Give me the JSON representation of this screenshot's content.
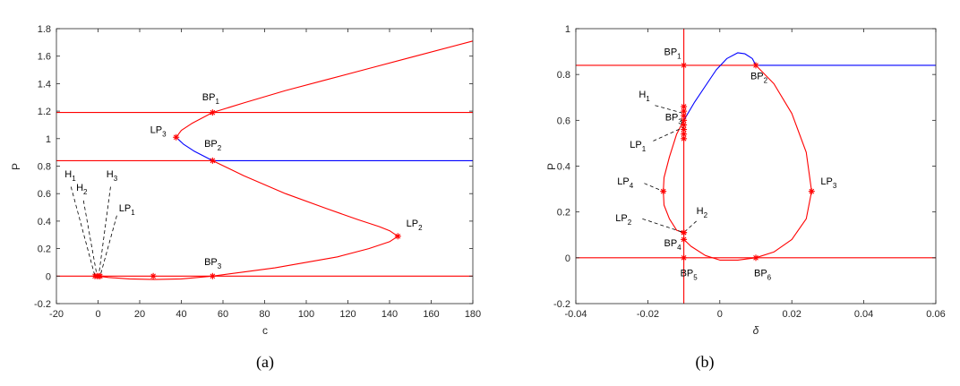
{
  "colors": {
    "red": "#ff0000",
    "blue": "#0000ff",
    "axis": "#262626",
    "annotation": "#000000"
  },
  "chart_data": [
    {
      "type": "line",
      "caption": "(a)",
      "xlabel": "c",
      "ylabel": "P",
      "xlim": [
        -20,
        180
      ],
      "ylim": [
        -0.2,
        1.8
      ],
      "xticks": [
        -20,
        0,
        20,
        40,
        60,
        80,
        100,
        120,
        140,
        160,
        180
      ],
      "yticks": [
        -0.2,
        0,
        0.2,
        0.4,
        0.6,
        0.8,
        1,
        1.2,
        1.4,
        1.6,
        1.8
      ],
      "grid": false,
      "series": [
        {
          "color": "red",
          "points": [
            [
              -20,
              1.19
            ],
            [
              180,
              1.19
            ]
          ]
        },
        {
          "color": "red",
          "points": [
            [
              -20,
              0.84
            ],
            [
              55,
              0.84
            ]
          ]
        },
        {
          "color": "blue",
          "points": [
            [
              55,
              0.84
            ],
            [
              180,
              0.84
            ]
          ]
        },
        {
          "color": "red",
          "points": [
            [
              -20,
              0
            ],
            [
              180,
              0
            ]
          ]
        },
        {
          "color": "red",
          "points": [
            [
              37.5,
              1.01
            ],
            [
              40,
              1.06
            ],
            [
              45,
              1.11
            ],
            [
              55,
              1.19
            ],
            [
              70,
              1.26
            ],
            [
              90,
              1.35
            ],
            [
              110,
              1.43
            ],
            [
              130,
              1.51
            ],
            [
              150,
              1.59
            ],
            [
              180,
              1.71
            ]
          ]
        },
        {
          "color": "blue",
          "points": [
            [
              37.5,
              1.01
            ],
            [
              41,
              0.96
            ],
            [
              46,
              0.91
            ],
            [
              55,
              0.84
            ]
          ]
        },
        {
          "color": "red",
          "points": [
            [
              55,
              0.84
            ],
            [
              70,
              0.73
            ],
            [
              90,
              0.6
            ],
            [
              110,
              0.49
            ],
            [
              125,
              0.41
            ],
            [
              135,
              0.36
            ],
            [
              140,
              0.33
            ],
            [
              144,
              0.29
            ],
            [
              140,
              0.25
            ],
            [
              130,
              0.2
            ],
            [
              115,
              0.14
            ],
            [
              100,
              0.1
            ],
            [
              85,
              0.06
            ],
            [
              70,
              0.03
            ],
            [
              55,
              0.0
            ],
            [
              40,
              -0.02
            ],
            [
              27,
              -0.025
            ],
            [
              15,
              -0.02
            ],
            [
              5,
              -0.01
            ],
            [
              0,
              0
            ]
          ]
        }
      ],
      "markers": [
        {
          "name": "BP1",
          "x": 55,
          "y": 1.19
        },
        {
          "name": "LP3",
          "x": 37.5,
          "y": 1.01
        },
        {
          "name": "BP2",
          "x": 55,
          "y": 0.84
        },
        {
          "name": "LP2",
          "x": 144,
          "y": 0.29
        },
        {
          "name": "BP3",
          "x": 55,
          "y": 0.0
        },
        {
          "name": "point",
          "x": 26.5,
          "y": 0.0
        },
        {
          "name": "H1",
          "x": -1.5,
          "y": 0.0
        },
        {
          "name": "H2",
          "x": -0.5,
          "y": 0.0
        },
        {
          "name": "H3",
          "x": 0.3,
          "y": 0.0
        },
        {
          "name": "LP1",
          "x": 1.0,
          "y": 0.0
        }
      ],
      "labels": [
        {
          "main": "BP",
          "sub": "1",
          "x": 50,
          "y": 1.28
        },
        {
          "main": "LP",
          "sub": "3",
          "x": 25,
          "y": 1.04
        },
        {
          "main": "BP",
          "sub": "2",
          "x": 51,
          "y": 0.94
        },
        {
          "main": "LP",
          "sub": "2",
          "x": 148,
          "y": 0.36
        },
        {
          "main": "BP",
          "sub": "3",
          "x": 51,
          "y": 0.08
        },
        {
          "main": "H",
          "sub": "1",
          "x": -16,
          "y": 0.72
        },
        {
          "main": "H",
          "sub": "2",
          "x": -10.5,
          "y": 0.62
        },
        {
          "main": "H",
          "sub": "3",
          "x": 4,
          "y": 0.72
        },
        {
          "main": "LP",
          "sub": "1",
          "x": 10,
          "y": 0.47
        }
      ],
      "leaders": [
        {
          "from": [
            -13,
            0.65
          ],
          "to": [
            -1.5,
            0.0
          ]
        },
        {
          "from": [
            -7,
            0.55
          ],
          "to": [
            -0.5,
            0.0
          ]
        },
        {
          "from": [
            6,
            0.65
          ],
          "to": [
            0.3,
            0.0
          ]
        },
        {
          "from": [
            9,
            0.44
          ],
          "to": [
            1.0,
            0.0
          ]
        }
      ]
    },
    {
      "type": "line",
      "caption": "(b)",
      "xlabel": "δ",
      "ylabel": "P",
      "xlim": [
        -0.04,
        0.06
      ],
      "ylim": [
        -0.2,
        1
      ],
      "xticks": [
        "-0.04",
        "-0.02",
        "0",
        "0.02",
        "0.04",
        "0.06"
      ],
      "xtick_values": [
        -0.04,
        -0.02,
        0,
        0.02,
        0.04,
        0.06
      ],
      "yticks": [
        -0.2,
        0,
        0.2,
        0.4,
        0.6,
        0.8,
        1
      ],
      "grid": false,
      "series": [
        {
          "color": "red",
          "points": [
            [
              -0.01,
              -0.2
            ],
            [
              -0.01,
              1
            ]
          ]
        },
        {
          "color": "red",
          "points": [
            [
              -0.04,
              0.84
            ],
            [
              0.01,
              0.84
            ]
          ]
        },
        {
          "color": "blue",
          "points": [
            [
              0.01,
              0.84
            ],
            [
              0.06,
              0.84
            ]
          ]
        },
        {
          "color": "red",
          "points": [
            [
              -0.04,
              0
            ],
            [
              0.06,
              0
            ]
          ]
        },
        {
          "color": "blue",
          "points": [
            [
              -0.01,
              0.6
            ],
            [
              -0.007,
              0.68
            ],
            [
              -0.004,
              0.75
            ],
            [
              -0.001,
              0.82
            ],
            [
              0.002,
              0.87
            ],
            [
              0.005,
              0.895
            ],
            [
              0.007,
              0.89
            ],
            [
              0.009,
              0.87
            ],
            [
              0.01,
              0.84
            ]
          ]
        },
        {
          "color": "red",
          "points": [
            [
              0.01,
              0.84
            ],
            [
              0.015,
              0.76
            ],
            [
              0.02,
              0.63
            ],
            [
              0.024,
              0.46
            ],
            [
              0.0255,
              0.29
            ],
            [
              0.024,
              0.17
            ],
            [
              0.02,
              0.08
            ],
            [
              0.015,
              0.025
            ],
            [
              0.01,
              0.0
            ],
            [
              0.005,
              -0.01
            ],
            [
              0.0,
              -0.01
            ],
            [
              -0.004,
              0.01
            ],
            [
              -0.008,
              0.05
            ],
            [
              -0.01,
              0.08
            ]
          ]
        },
        {
          "color": "red",
          "points": [
            [
              -0.01,
              0.6
            ],
            [
              -0.012,
              0.54
            ],
            [
              -0.014,
              0.44
            ],
            [
              -0.0155,
              0.35
            ],
            [
              -0.0157,
              0.29
            ],
            [
              -0.0155,
              0.23
            ],
            [
              -0.014,
              0.17
            ],
            [
              -0.012,
              0.12
            ],
            [
              -0.01,
              0.11
            ]
          ]
        }
      ],
      "markers": [
        {
          "name": "BP1",
          "x": -0.01,
          "y": 0.84
        },
        {
          "name": "BP2",
          "x": 0.01,
          "y": 0.84
        },
        {
          "name": "LP3",
          "x": 0.0255,
          "y": 0.29
        },
        {
          "name": "LP4",
          "x": -0.0157,
          "y": 0.29
        },
        {
          "name": "H2",
          "x": -0.01,
          "y": 0.11
        },
        {
          "name": "LP2",
          "x": -0.01,
          "y": 0.11
        },
        {
          "name": "BP4",
          "x": -0.01,
          "y": 0.08
        },
        {
          "name": "BP5",
          "x": -0.01,
          "y": 0.0
        },
        {
          "name": "BP6",
          "x": 0.01,
          "y": 0.0
        },
        {
          "name": "H1",
          "x": -0.01,
          "y": 0.64
        },
        {
          "name": "BP3",
          "x": -0.01,
          "y": 0.6
        },
        {
          "name": "LP1",
          "x": -0.01,
          "y": 0.58
        },
        {
          "name": "cluster",
          "x": -0.01,
          "y": 0.62
        },
        {
          "name": "cluster",
          "x": -0.01,
          "y": 0.56
        },
        {
          "name": "cluster",
          "x": -0.01,
          "y": 0.54
        },
        {
          "name": "cluster",
          "x": -0.01,
          "y": 0.66
        },
        {
          "name": "cluster",
          "x": -0.01,
          "y": 0.52
        }
      ],
      "labels": [
        {
          "main": "BP",
          "sub": "1",
          "x": -0.0155,
          "y": 0.885
        },
        {
          "main": "BP",
          "sub": "2",
          "x": 0.0085,
          "y": 0.78
        },
        {
          "main": "H",
          "sub": "1",
          "x": -0.0225,
          "y": 0.7
        },
        {
          "main": "BP",
          "sub": "3",
          "x": -0.0152,
          "y": 0.6
        },
        {
          "main": "LP",
          "sub": "1",
          "x": -0.025,
          "y": 0.48
        },
        {
          "main": "LP",
          "sub": "3",
          "x": 0.028,
          "y": 0.32
        },
        {
          "main": "LP",
          "sub": "4",
          "x": -0.0285,
          "y": 0.32
        },
        {
          "main": "LP",
          "sub": "2",
          "x": -0.029,
          "y": 0.16
        },
        {
          "main": "H",
          "sub": "2",
          "x": -0.0065,
          "y": 0.19
        },
        {
          "main": "BP",
          "sub": "4",
          "x": -0.0155,
          "y": 0.05
        },
        {
          "main": "BP",
          "sub": "5",
          "x": -0.011,
          "y": -0.08
        },
        {
          "main": "BP",
          "sub": "6",
          "x": 0.0095,
          "y": -0.08
        }
      ],
      "leaders": [
        {
          "from": [
            -0.018,
            0.665
          ],
          "to": [
            -0.01,
            0.63
          ]
        },
        {
          "from": [
            -0.0185,
            0.51
          ],
          "to": [
            -0.01,
            0.57
          ]
        },
        {
          "from": [
            -0.021,
            0.325
          ],
          "to": [
            -0.0157,
            0.29
          ]
        },
        {
          "from": [
            -0.0215,
            0.17
          ],
          "to": [
            -0.01,
            0.11
          ]
        },
        {
          "from": [
            -0.0065,
            0.16
          ],
          "to": [
            -0.01,
            0.11
          ]
        }
      ]
    }
  ]
}
